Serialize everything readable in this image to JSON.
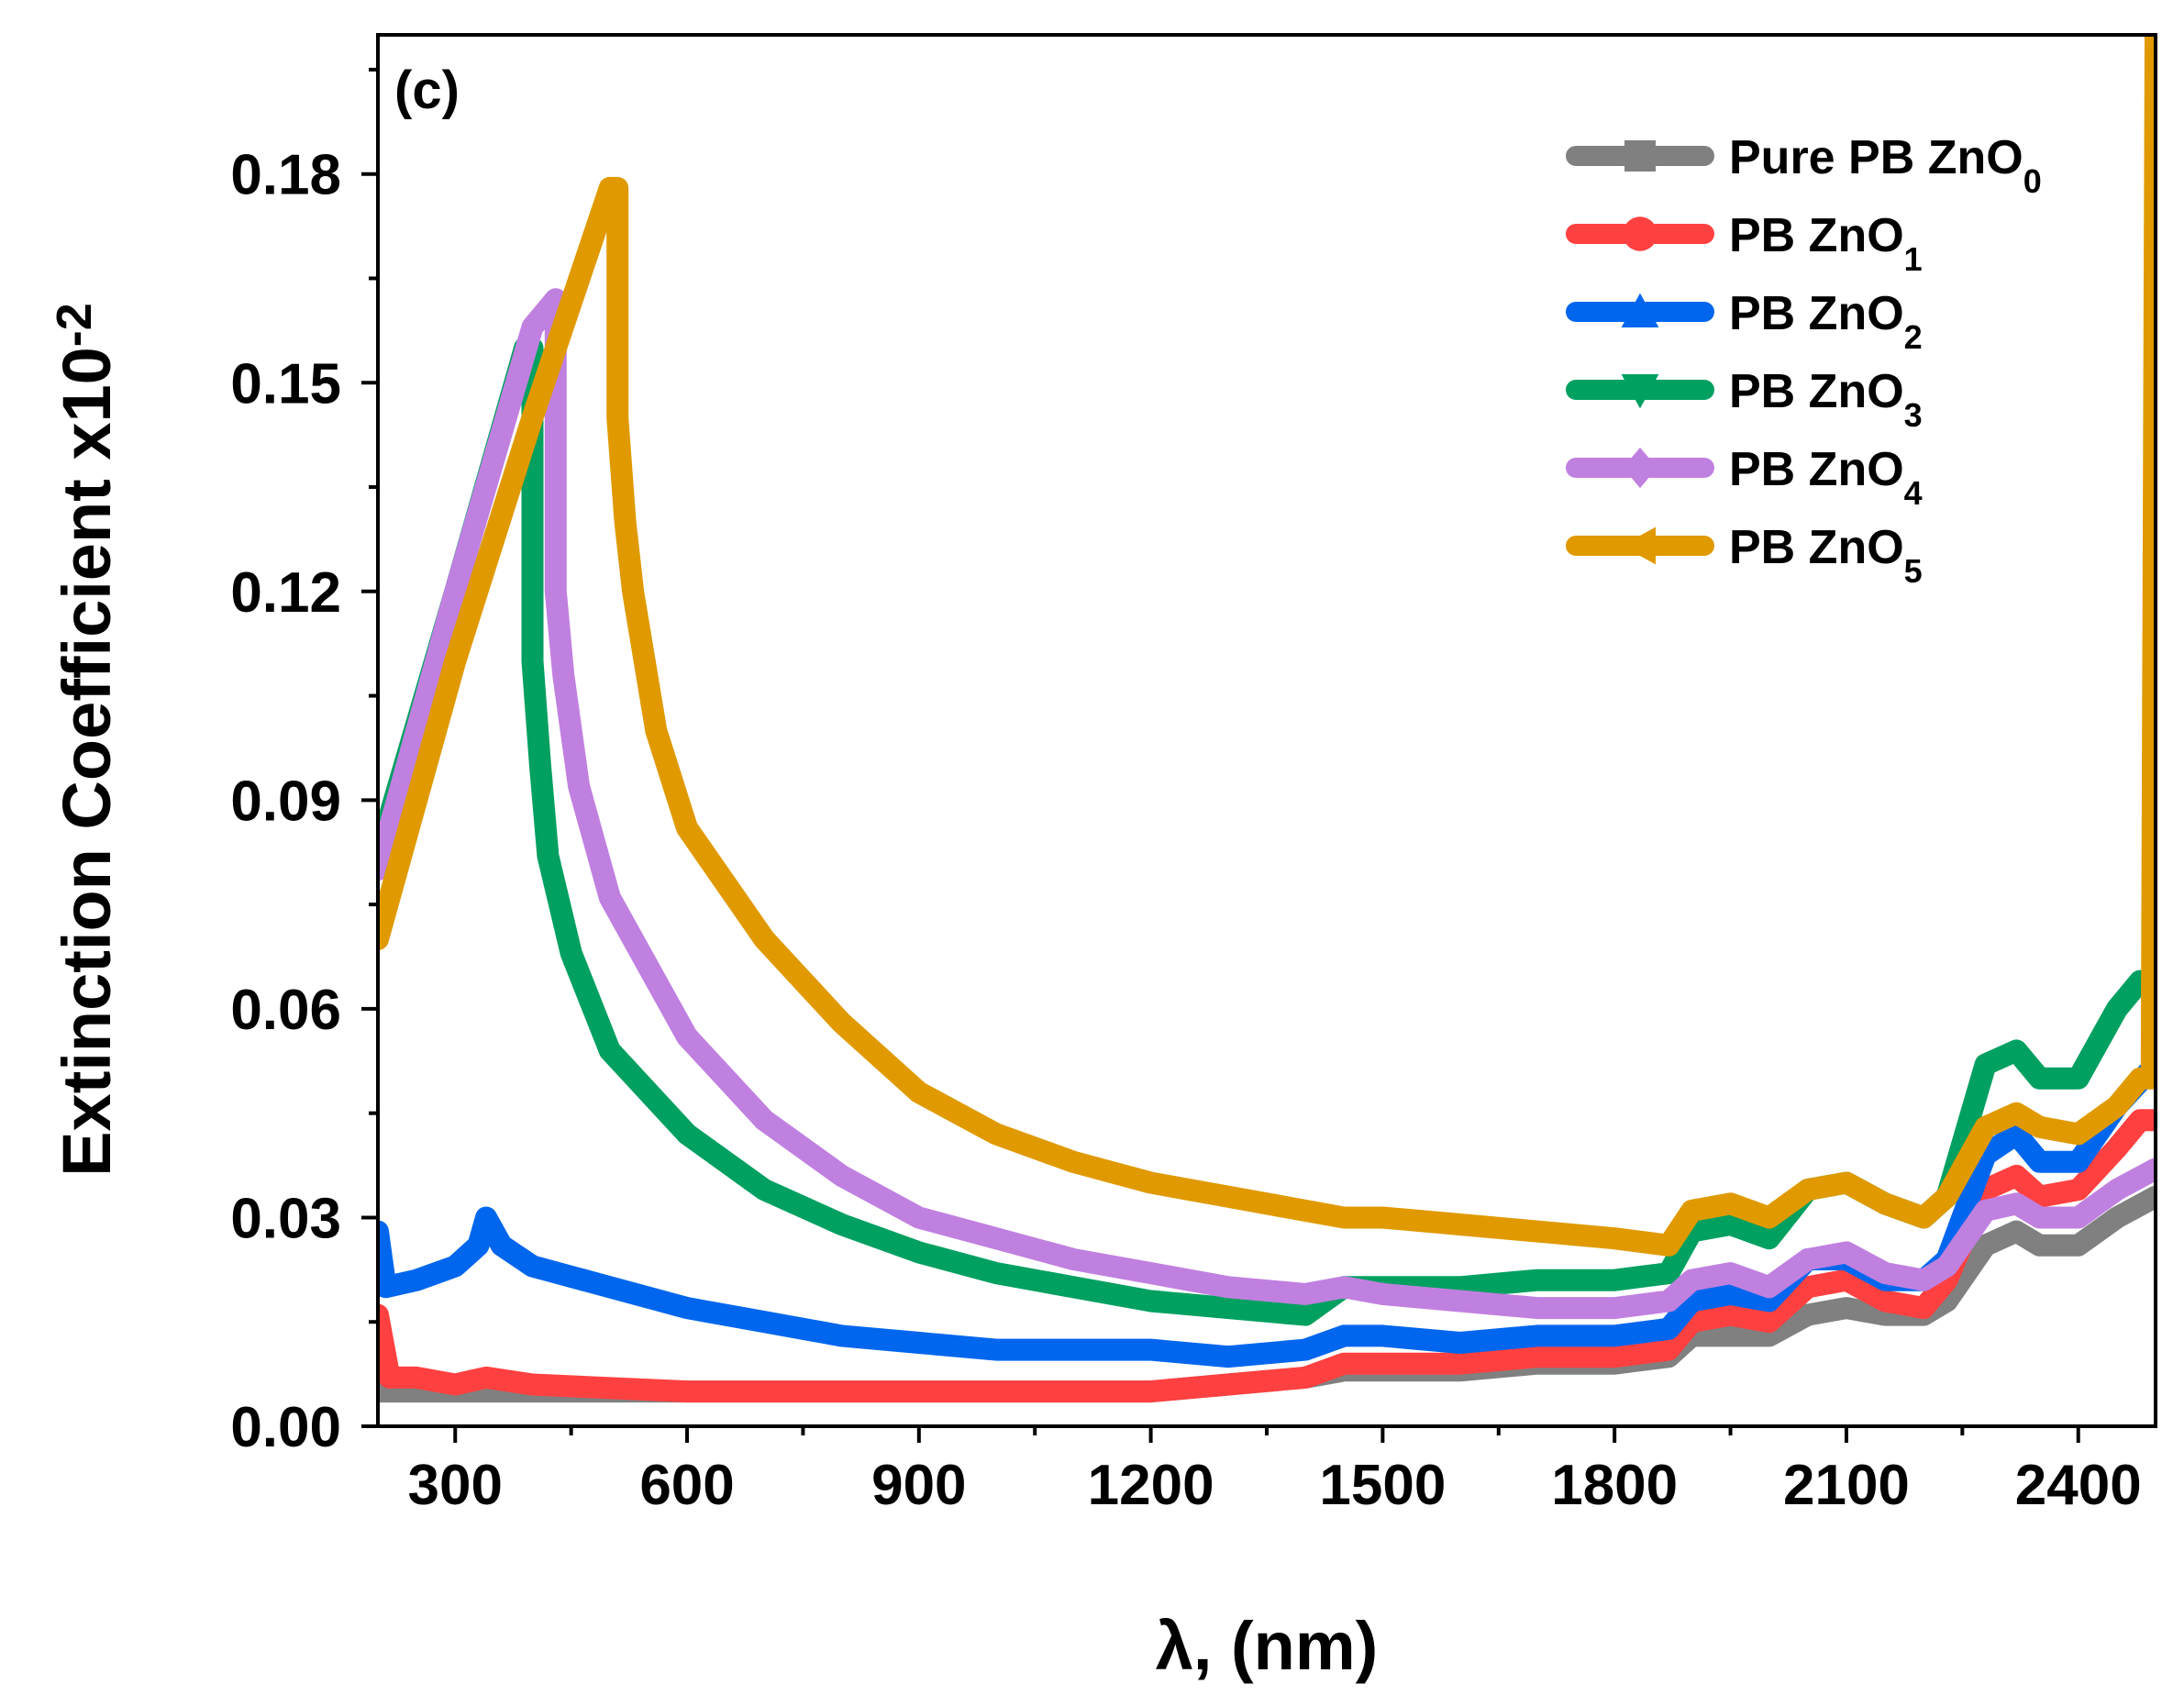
{
  "chart_data": {
    "type": "line",
    "panel_label": "(c)",
    "title": "",
    "xlabel": "λ, (nm)",
    "ylabel_main": "Extinction Coefficient x10",
    "ylabel_exponent": "-2",
    "xlim": [
      200,
      2500
    ],
    "ylim": [
      0,
      0.2
    ],
    "xticks": [
      300,
      600,
      900,
      1200,
      1500,
      1800,
      2100,
      2400
    ],
    "xtick_labels": [
      "300",
      "600",
      "900",
      "1200",
      "1500",
      "1800",
      "2100",
      "2400"
    ],
    "yticks": [
      0,
      0.03,
      0.06,
      0.09,
      0.12,
      0.15,
      0.18
    ],
    "ytick_labels": [
      "0.00",
      "0.03",
      "0.06",
      "0.09",
      "0.12",
      "0.15",
      "0.18"
    ],
    "legend_position": "top-right",
    "series": [
      {
        "name": "Pure PB ZnO",
        "sub": "0",
        "marker": "square",
        "color": "#808080",
        "points": [
          [
            200,
            0.005
          ],
          [
            300,
            0.005
          ],
          [
            400,
            0.005
          ],
          [
            600,
            0.005
          ],
          [
            800,
            0.005
          ],
          [
            1000,
            0.005
          ],
          [
            1200,
            0.005
          ],
          [
            1300,
            0.006
          ],
          [
            1400,
            0.007
          ],
          [
            1450,
            0.008
          ],
          [
            1500,
            0.008
          ],
          [
            1600,
            0.008
          ],
          [
            1700,
            0.009
          ],
          [
            1800,
            0.009
          ],
          [
            1870,
            0.01
          ],
          [
            1900,
            0.013
          ],
          [
            1950,
            0.013
          ],
          [
            2000,
            0.013
          ],
          [
            2050,
            0.016
          ],
          [
            2100,
            0.017
          ],
          [
            2150,
            0.016
          ],
          [
            2200,
            0.016
          ],
          [
            2230,
            0.018
          ],
          [
            2280,
            0.026
          ],
          [
            2320,
            0.028
          ],
          [
            2350,
            0.026
          ],
          [
            2400,
            0.026
          ],
          [
            2450,
            0.03
          ],
          [
            2500,
            0.033
          ]
        ]
      },
      {
        "name": "PB ZnO",
        "sub": "1",
        "marker": "circle",
        "color": "#ff4040",
        "points": [
          [
            200,
            0.016
          ],
          [
            215,
            0.007
          ],
          [
            250,
            0.007
          ],
          [
            300,
            0.006
          ],
          [
            340,
            0.007
          ],
          [
            400,
            0.006
          ],
          [
            600,
            0.005
          ],
          [
            800,
            0.005
          ],
          [
            1000,
            0.005
          ],
          [
            1200,
            0.005
          ],
          [
            1300,
            0.006
          ],
          [
            1400,
            0.007
          ],
          [
            1450,
            0.009
          ],
          [
            1500,
            0.009
          ],
          [
            1600,
            0.009
          ],
          [
            1700,
            0.01
          ],
          [
            1800,
            0.01
          ],
          [
            1870,
            0.011
          ],
          [
            1900,
            0.015
          ],
          [
            1950,
            0.016
          ],
          [
            2000,
            0.015
          ],
          [
            2050,
            0.02
          ],
          [
            2100,
            0.021
          ],
          [
            2150,
            0.018
          ],
          [
            2200,
            0.017
          ],
          [
            2230,
            0.021
          ],
          [
            2280,
            0.034
          ],
          [
            2320,
            0.036
          ],
          [
            2350,
            0.033
          ],
          [
            2400,
            0.034
          ],
          [
            2450,
            0.04
          ],
          [
            2480,
            0.044
          ],
          [
            2500,
            0.044
          ]
        ]
      },
      {
        "name": "PB ZnO",
        "sub": "2",
        "marker": "triangle-up",
        "color": "#0066ee",
        "points": [
          [
            200,
            0.028
          ],
          [
            210,
            0.02
          ],
          [
            250,
            0.021
          ],
          [
            300,
            0.023
          ],
          [
            330,
            0.026
          ],
          [
            340,
            0.03
          ],
          [
            360,
            0.026
          ],
          [
            400,
            0.023
          ],
          [
            500,
            0.02
          ],
          [
            600,
            0.017
          ],
          [
            700,
            0.015
          ],
          [
            800,
            0.013
          ],
          [
            900,
            0.012
          ],
          [
            1000,
            0.011
          ],
          [
            1100,
            0.011
          ],
          [
            1200,
            0.011
          ],
          [
            1300,
            0.01
          ],
          [
            1400,
            0.011
          ],
          [
            1450,
            0.013
          ],
          [
            1500,
            0.013
          ],
          [
            1600,
            0.012
          ],
          [
            1700,
            0.013
          ],
          [
            1800,
            0.013
          ],
          [
            1870,
            0.014
          ],
          [
            1900,
            0.018
          ],
          [
            1950,
            0.019
          ],
          [
            2000,
            0.018
          ],
          [
            2050,
            0.024
          ],
          [
            2100,
            0.024
          ],
          [
            2150,
            0.021
          ],
          [
            2200,
            0.021
          ],
          [
            2230,
            0.024
          ],
          [
            2280,
            0.039
          ],
          [
            2320,
            0.042
          ],
          [
            2350,
            0.038
          ],
          [
            2400,
            0.038
          ],
          [
            2450,
            0.046
          ],
          [
            2500,
            0.052
          ]
        ]
      },
      {
        "name": "PB ZnO",
        "sub": "3",
        "marker": "triangle-down",
        "color": "#00a060",
        "points": [
          [
            200,
            0.082
          ],
          [
            300,
            0.12
          ],
          [
            390,
            0.155
          ],
          [
            400,
            0.155
          ],
          [
            400,
            0.11
          ],
          [
            410,
            0.095
          ],
          [
            420,
            0.082
          ],
          [
            450,
            0.068
          ],
          [
            500,
            0.054
          ],
          [
            600,
            0.042
          ],
          [
            700,
            0.034
          ],
          [
            800,
            0.029
          ],
          [
            900,
            0.025
          ],
          [
            1000,
            0.022
          ],
          [
            1100,
            0.02
          ],
          [
            1200,
            0.018
          ],
          [
            1300,
            0.017
          ],
          [
            1400,
            0.016
          ],
          [
            1450,
            0.02
          ],
          [
            1500,
            0.02
          ],
          [
            1600,
            0.02
          ],
          [
            1700,
            0.021
          ],
          [
            1800,
            0.021
          ],
          [
            1870,
            0.022
          ],
          [
            1900,
            0.028
          ],
          [
            1950,
            0.029
          ],
          [
            2000,
            0.027
          ],
          [
            2050,
            0.034
          ],
          [
            2100,
            0.035
          ],
          [
            2150,
            0.032
          ],
          [
            2200,
            0.03
          ],
          [
            2230,
            0.033
          ],
          [
            2280,
            0.052
          ],
          [
            2320,
            0.054
          ],
          [
            2350,
            0.05
          ],
          [
            2400,
            0.05
          ],
          [
            2450,
            0.06
          ],
          [
            2480,
            0.064
          ],
          [
            2500,
            0.064
          ]
        ]
      },
      {
        "name": "PB ZnO",
        "sub": "4",
        "marker": "diamond",
        "color": "#c080e0",
        "points": [
          [
            200,
            0.08
          ],
          [
            300,
            0.12
          ],
          [
            400,
            0.158
          ],
          [
            430,
            0.162
          ],
          [
            430,
            0.12
          ],
          [
            440,
            0.108
          ],
          [
            460,
            0.092
          ],
          [
            500,
            0.076
          ],
          [
            600,
            0.056
          ],
          [
            700,
            0.044
          ],
          [
            800,
            0.036
          ],
          [
            900,
            0.03
          ],
          [
            1000,
            0.027
          ],
          [
            1100,
            0.024
          ],
          [
            1200,
            0.022
          ],
          [
            1300,
            0.02
          ],
          [
            1400,
            0.019
          ],
          [
            1450,
            0.02
          ],
          [
            1500,
            0.019
          ],
          [
            1600,
            0.018
          ],
          [
            1700,
            0.017
          ],
          [
            1800,
            0.017
          ],
          [
            1870,
            0.018
          ],
          [
            1900,
            0.021
          ],
          [
            1950,
            0.022
          ],
          [
            2000,
            0.02
          ],
          [
            2050,
            0.024
          ],
          [
            2100,
            0.025
          ],
          [
            2150,
            0.022
          ],
          [
            2200,
            0.021
          ],
          [
            2230,
            0.023
          ],
          [
            2280,
            0.031
          ],
          [
            2320,
            0.032
          ],
          [
            2350,
            0.03
          ],
          [
            2400,
            0.03
          ],
          [
            2450,
            0.034
          ],
          [
            2500,
            0.037
          ]
        ]
      },
      {
        "name": "PB ZnO",
        "sub": "5",
        "marker": "triangle-left",
        "color": "#e09a00",
        "points": [
          [
            200,
            0.07
          ],
          [
            300,
            0.11
          ],
          [
            400,
            0.145
          ],
          [
            500,
            0.178
          ],
          [
            510,
            0.178
          ],
          [
            510,
            0.145
          ],
          [
            520,
            0.13
          ],
          [
            530,
            0.12
          ],
          [
            560,
            0.1
          ],
          [
            600,
            0.086
          ],
          [
            700,
            0.07
          ],
          [
            800,
            0.058
          ],
          [
            900,
            0.048
          ],
          [
            1000,
            0.042
          ],
          [
            1100,
            0.038
          ],
          [
            1200,
            0.035
          ],
          [
            1300,
            0.033
          ],
          [
            1400,
            0.031
          ],
          [
            1450,
            0.03
          ],
          [
            1500,
            0.03
          ],
          [
            1600,
            0.029
          ],
          [
            1700,
            0.028
          ],
          [
            1800,
            0.027
          ],
          [
            1870,
            0.026
          ],
          [
            1900,
            0.031
          ],
          [
            1950,
            0.032
          ],
          [
            2000,
            0.03
          ],
          [
            2050,
            0.034
          ],
          [
            2100,
            0.035
          ],
          [
            2150,
            0.032
          ],
          [
            2200,
            0.03
          ],
          [
            2230,
            0.033
          ],
          [
            2280,
            0.043
          ],
          [
            2320,
            0.045
          ],
          [
            2350,
            0.043
          ],
          [
            2400,
            0.042
          ],
          [
            2450,
            0.046
          ],
          [
            2480,
            0.05
          ],
          [
            2495,
            0.05
          ],
          [
            2500,
            0.2
          ]
        ]
      }
    ]
  }
}
